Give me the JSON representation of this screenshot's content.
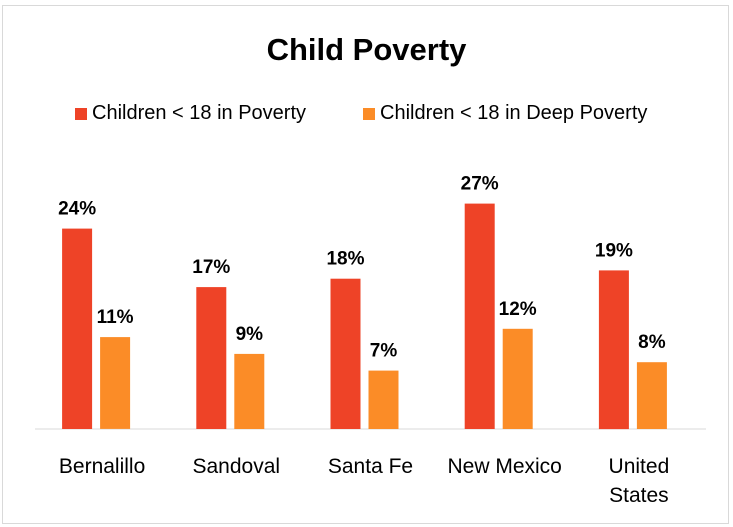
{
  "chart_data": {
    "type": "bar",
    "title": "Child Poverty",
    "categories": [
      [
        "Bernalillo"
      ],
      [
        "Sandoval"
      ],
      [
        "Santa Fe"
      ],
      [
        "New Mexico"
      ],
      [
        "United",
        "States"
      ]
    ],
    "series": [
      {
        "name": "Children < 18 in Poverty",
        "color": "#ee4327",
        "values": [
          24,
          17,
          18,
          27,
          19
        ],
        "labels": [
          "24%",
          "17%",
          "18%",
          "27%",
          "19%"
        ]
      },
      {
        "name": "Children < 18 in Deep Poverty",
        "color": "#fb8c27",
        "values": [
          11,
          9,
          7,
          12,
          8
        ],
        "labels": [
          "11%",
          "9%",
          "7%",
          "12%",
          "8%"
        ]
      }
    ],
    "ylim": [
      0,
      30
    ],
    "grid": false,
    "legend": "top",
    "xlabel": "",
    "ylabel": ""
  }
}
